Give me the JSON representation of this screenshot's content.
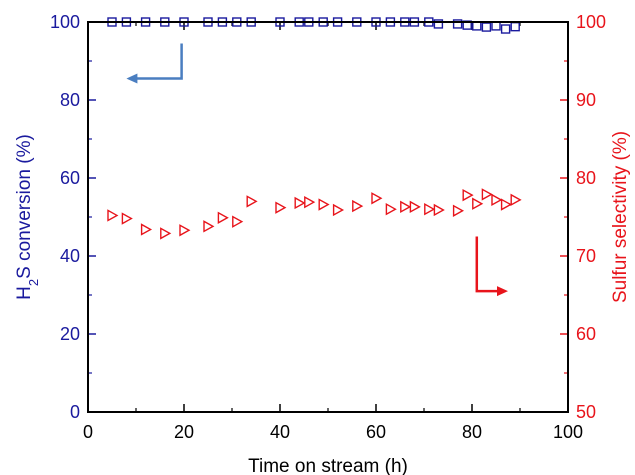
{
  "colors": {
    "left_axis": "#1a1a9e",
    "right_axis": "#e8141b",
    "left_arrow": "#4a7ec0",
    "right_arrow": "#e8141b",
    "frame": "#000000"
  },
  "chart_data": {
    "type": "scatter",
    "xlabel": "Time on stream (h)",
    "ylabel_left_parts": [
      "H",
      "2",
      "S conversion (%)"
    ],
    "ylabel_right": "Sulfur selectivity (%)",
    "xlim": [
      0,
      100
    ],
    "ylim_left": [
      0,
      100
    ],
    "ylim_right": [
      50,
      100
    ],
    "x_ticks": [
      0,
      20,
      40,
      60,
      80,
      100
    ],
    "y_left_ticks": [
      0,
      20,
      40,
      60,
      80,
      100
    ],
    "y_right_ticks": [
      50,
      60,
      70,
      80,
      90,
      100
    ],
    "series": [
      {
        "axis": "left",
        "marker": "square",
        "color": "#1a1a9e",
        "x": [
          5,
          8,
          12,
          16,
          20,
          25,
          28,
          31,
          34,
          40,
          44,
          46,
          49,
          52,
          56,
          60,
          63,
          66,
          68,
          71,
          73,
          77,
          79,
          81,
          83,
          85,
          87,
          89
        ],
        "y": [
          100,
          100,
          100,
          100,
          100,
          100,
          100,
          100,
          100,
          100,
          100,
          100,
          100,
          100,
          100,
          100,
          100,
          100,
          100,
          100,
          99.5,
          99.5,
          99.2,
          99,
          98.7,
          99,
          98.2,
          98.8
        ]
      },
      {
        "axis": "right",
        "marker": "triangle-right",
        "color": "#e8141b",
        "x": [
          5,
          8,
          12,
          16,
          20,
          25,
          28,
          31,
          34,
          40,
          44,
          46,
          49,
          52,
          56,
          60,
          63,
          66,
          68,
          71,
          73,
          77,
          79,
          81,
          83,
          85,
          87,
          89
        ],
        "y": [
          75.2,
          74.8,
          73.4,
          72.9,
          73.3,
          73.8,
          74.9,
          74.4,
          77,
          76.2,
          76.8,
          76.9,
          76.6,
          75.9,
          76.4,
          77.4,
          76,
          76.3,
          76.3,
          76,
          75.9,
          75.8,
          77.8,
          76.7,
          77.9,
          77.2,
          76.6,
          77.2
        ]
      }
    ]
  }
}
